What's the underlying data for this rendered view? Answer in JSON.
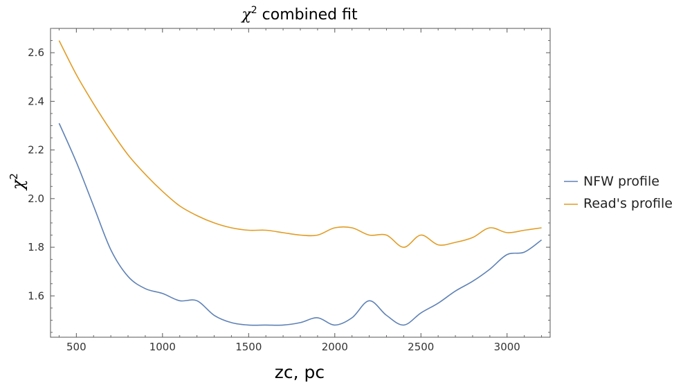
{
  "chart_data": {
    "type": "line",
    "title": "χ² combined fit",
    "title_parts": {
      "symbol": "χ",
      "superscript": "2",
      "rest": " combined fit"
    },
    "xlabel": "zc, pc",
    "ylabel": "χ²",
    "ylabel_parts": {
      "symbol": "χ",
      "superscript": "2"
    },
    "xlim": [
      350,
      3250
    ],
    "ylim": [
      1.43,
      2.7
    ],
    "xticks": [
      500,
      1000,
      1500,
      2000,
      2500,
      3000
    ],
    "xtick_labels": [
      "500",
      "1000",
      "1500",
      "2000",
      "2500",
      "3000"
    ],
    "yticks": [
      1.6,
      1.8,
      2.0,
      2.2,
      2.4,
      2.6
    ],
    "ytick_labels": [
      "1.6",
      "1.8",
      "2.0",
      "2.2",
      "2.4",
      "2.6"
    ],
    "grid": false,
    "legend_position": "right",
    "series": [
      {
        "name": "NFW profile",
        "color": "#5E81B5",
        "x": [
          400,
          500,
          600,
          700,
          800,
          900,
          1000,
          1100,
          1200,
          1300,
          1400,
          1500,
          1600,
          1700,
          1800,
          1900,
          2000,
          2100,
          2200,
          2300,
          2400,
          2500,
          2600,
          2700,
          2800,
          2900,
          3000,
          3100,
          3200
        ],
        "y": [
          2.31,
          2.15,
          1.97,
          1.79,
          1.68,
          1.63,
          1.61,
          1.58,
          1.58,
          1.52,
          1.49,
          1.48,
          1.48,
          1.48,
          1.49,
          1.51,
          1.48,
          1.51,
          1.58,
          1.52,
          1.48,
          1.53,
          1.57,
          1.62,
          1.66,
          1.71,
          1.77,
          1.78,
          1.83
        ]
      },
      {
        "name": "Read's profile",
        "color": "#E19C24",
        "x": [
          400,
          500,
          600,
          700,
          800,
          900,
          1000,
          1100,
          1200,
          1300,
          1400,
          1500,
          1600,
          1700,
          1800,
          1900,
          2000,
          2100,
          2200,
          2300,
          2400,
          2500,
          2600,
          2700,
          2800,
          2900,
          3000,
          3100,
          3200
        ],
        "y": [
          2.65,
          2.51,
          2.39,
          2.28,
          2.18,
          2.1,
          2.03,
          1.97,
          1.93,
          1.9,
          1.88,
          1.87,
          1.87,
          1.86,
          1.85,
          1.85,
          1.88,
          1.88,
          1.85,
          1.85,
          1.8,
          1.85,
          1.81,
          1.82,
          1.84,
          1.88,
          1.86,
          1.87,
          1.88
        ]
      }
    ]
  }
}
